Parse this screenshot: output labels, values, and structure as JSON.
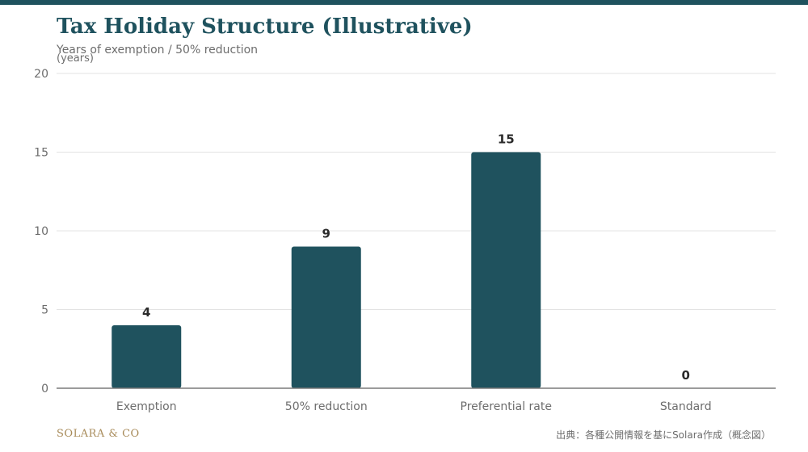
{
  "header": {
    "accent_color": "#1f525e"
  },
  "chart_data": {
    "type": "bar",
    "title": "Tax Holiday Structure (Illustrative)",
    "subtitle": "Years of exemption / 50% reduction",
    "ylabel": "(years)",
    "xlabel": "",
    "categories": [
      "Exemption",
      "50% reduction",
      "Preferential rate",
      "Standard"
    ],
    "values": [
      4,
      9,
      15,
      0
    ],
    "ylim": [
      0,
      20
    ],
    "yticks": [
      0,
      5,
      10,
      15,
      20
    ],
    "grid": true,
    "bar_color": "#1f525e"
  },
  "footer": {
    "brand": "SOLARA & CO",
    "source": "出典：各種公開情報を基にSolara作成（概念図）"
  }
}
